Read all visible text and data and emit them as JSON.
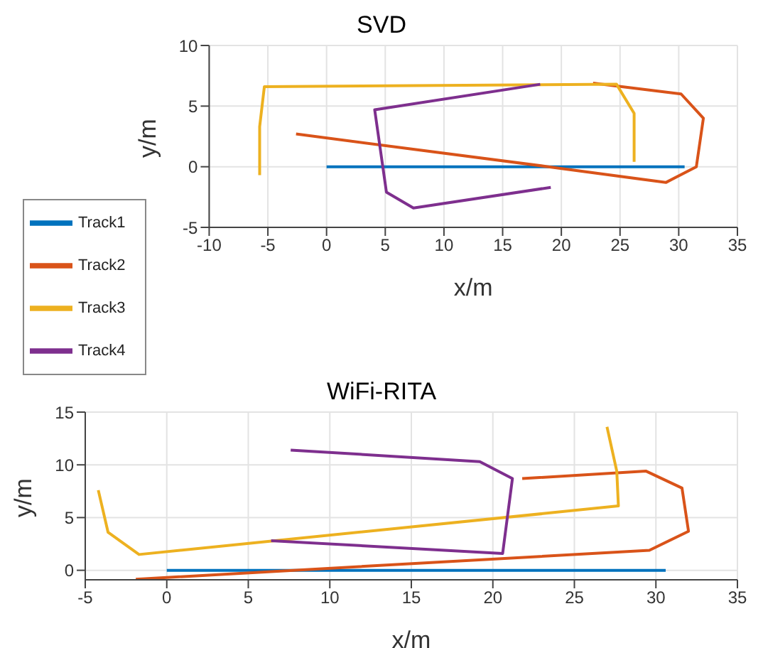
{
  "chart_data": [
    {
      "type": "line",
      "title": "SVD",
      "xlabel": "x/m",
      "ylabel": "y/m",
      "xlim": [
        -10,
        35
      ],
      "xticks": [
        -10,
        -5,
        0,
        5,
        10,
        15,
        20,
        25,
        30,
        35
      ],
      "ylim": [
        -5,
        10
      ],
      "yticks": [
        -5,
        0,
        5,
        10
      ],
      "grid": true,
      "legend": "bottom left",
      "marker": "none",
      "line_style": "solid",
      "series": [
        {
          "name": "Track1",
          "color": "#0072bd",
          "x": [
            0,
            30.5
          ],
          "values": [
            0,
            0
          ]
        },
        {
          "name": "Track2",
          "color": "#d95319",
          "x": [
            -2.6,
            18.9,
            28.9,
            31.5,
            32.1,
            30.2,
            22.7
          ],
          "values": [
            2.7,
            0,
            -1.3,
            0,
            4.0,
            6.0,
            6.9
          ]
        },
        {
          "name": "Track3",
          "color": "#edb120",
          "x": [
            -5.7,
            -5.7,
            -5.3,
            24.7,
            26.2,
            26.2
          ],
          "values": [
            -0.7,
            3.3,
            6.6,
            6.8,
            4.4,
            0.4
          ]
        },
        {
          "name": "Track4",
          "color": "#7e2f8e",
          "x": [
            18.2,
            4.1,
            5.1,
            7.4,
            19.1
          ],
          "values": [
            6.8,
            4.7,
            -2.1,
            -3.4,
            -1.7
          ]
        }
      ]
    },
    {
      "type": "line",
      "title": "WiFi-RITA",
      "xlabel": "x/m",
      "ylabel": "y/m",
      "xlim": [
        -5,
        35
      ],
      "xticks": [
        -5,
        0,
        5,
        10,
        15,
        20,
        25,
        30,
        35
      ],
      "ylim": [
        -0.9,
        15
      ],
      "yticks": [
        0,
        5,
        10,
        15
      ],
      "grid": true,
      "marker": "none",
      "line_style": "solid",
      "series": [
        {
          "color": "#0072bd",
          "x": [
            0,
            30.6
          ],
          "values": [
            0,
            0
          ]
        },
        {
          "color": "#d95319",
          "x": [
            -1.9,
            29.6,
            32.0,
            31.6,
            29.4,
            21.8
          ],
          "values": [
            -0.85,
            1.9,
            3.7,
            7.8,
            9.4,
            8.7
          ]
        },
        {
          "color": "#edb120",
          "x": [
            -4.2,
            -3.6,
            -1.7,
            27.7,
            27.6,
            27.0
          ],
          "values": [
            7.6,
            3.6,
            1.5,
            6.1,
            9.4,
            13.6
          ]
        },
        {
          "color": "#7e2f8e",
          "x": [
            7.6,
            19.2,
            21.2,
            20.6,
            6.4
          ],
          "values": [
            11.4,
            10.3,
            8.7,
            1.6,
            2.8
          ]
        }
      ]
    }
  ]
}
